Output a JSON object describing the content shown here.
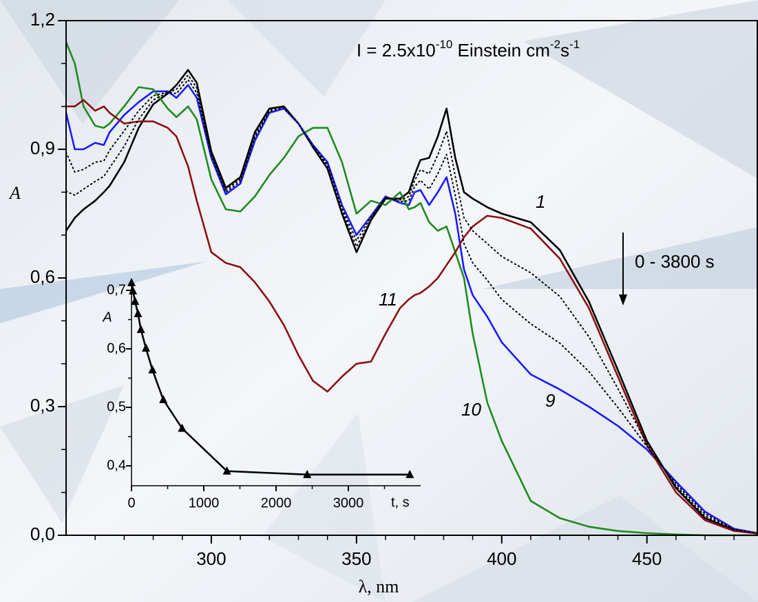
{
  "chart_data": [
    {
      "type": "line",
      "annotation_parts": [
        "I = 2.5x10",
        "-10",
        " Einstein cm",
        "-2",
        "s",
        "-1"
      ],
      "arrow_label": "0 - 3800 s",
      "xlabel": "λ, nm",
      "ylabel": "A",
      "x": [
        250,
        253,
        256,
        260,
        263,
        265,
        270,
        275,
        280,
        285,
        288,
        292,
        295,
        300,
        305,
        310,
        315,
        320,
        325,
        330,
        335,
        340,
        345,
        350,
        355,
        360,
        365,
        368,
        370,
        372,
        375,
        378,
        381,
        384,
        387,
        390,
        395,
        400,
        410,
        420,
        430,
        440,
        450,
        460,
        470,
        480,
        488
      ],
      "xlim": [
        250,
        488
      ],
      "xticks": [
        300,
        350,
        400,
        450
      ],
      "xminorticks": [
        260,
        270,
        280,
        290,
        310,
        320,
        330,
        340,
        360,
        370,
        380,
        390,
        410,
        420,
        430,
        440,
        460,
        470,
        480
      ],
      "ylim": [
        0,
        1.2
      ],
      "yticks": [
        {
          "value": 0,
          "label": "0,0"
        },
        {
          "value": 0.3,
          "label": "0,3"
        },
        {
          "value": 0.6,
          "label": "0,6"
        },
        {
          "value": 0.9,
          "label": "0,9"
        },
        {
          "value": 1.2,
          "label": "1,2"
        }
      ],
      "yminorticks": [
        0.1,
        0.2,
        0.4,
        0.5,
        0.7,
        0.8,
        1.0,
        1.1
      ],
      "series": [
        {
          "name": "1",
          "color": "#000000",
          "values": [
            0.71,
            0.74,
            0.76,
            0.78,
            0.8,
            0.815,
            0.87,
            0.95,
            1.005,
            1.03,
            1.05,
            1.085,
            1.055,
            0.895,
            0.81,
            0.835,
            0.94,
            0.995,
            1.0,
            0.96,
            0.905,
            0.855,
            0.75,
            0.66,
            0.735,
            0.785,
            0.785,
            0.8,
            0.84,
            0.875,
            0.88,
            0.93,
            0.995,
            0.88,
            0.8,
            0.785,
            0.765,
            0.75,
            0.73,
            0.665,
            0.545,
            0.385,
            0.22,
            0.11,
            0.04,
            0.012,
            0.005
          ]
        },
        {
          "name": "9",
          "color": "#1a1aff",
          "values": [
            0.985,
            0.9,
            0.9,
            0.915,
            0.91,
            0.94,
            0.98,
            1.01,
            1.035,
            1.035,
            1.02,
            1.05,
            1.02,
            0.88,
            0.795,
            0.82,
            0.92,
            0.985,
            0.995,
            0.96,
            0.91,
            0.87,
            0.77,
            0.7,
            0.745,
            0.79,
            0.775,
            0.77,
            0.8,
            0.805,
            0.77,
            0.8,
            0.835,
            0.75,
            0.62,
            0.56,
            0.51,
            0.45,
            0.375,
            0.34,
            0.3,
            0.255,
            0.2,
            0.125,
            0.055,
            0.015,
            0.005
          ]
        },
        {
          "name": "10",
          "color": "#1e8a1e",
          "values": [
            1.15,
            1.1,
            1.0,
            0.955,
            0.95,
            0.96,
            1.0,
            1.045,
            1.04,
            0.995,
            0.975,
            1.0,
            0.97,
            0.83,
            0.76,
            0.755,
            0.79,
            0.84,
            0.88,
            0.93,
            0.95,
            0.95,
            0.87,
            0.75,
            0.78,
            0.77,
            0.8,
            0.76,
            0.765,
            0.775,
            0.73,
            0.71,
            0.72,
            0.66,
            0.6,
            0.47,
            0.31,
            0.22,
            0.08,
            0.04,
            0.02,
            0.01,
            0.005,
            0.002,
            0,
            0,
            0
          ]
        },
        {
          "name": "11",
          "color": "#8b1010",
          "values": [
            1.0,
            1.0,
            1.015,
            0.99,
            1.0,
            0.985,
            0.96,
            0.965,
            0.965,
            0.95,
            0.93,
            0.86,
            0.78,
            0.66,
            0.635,
            0.625,
            0.59,
            0.545,
            0.49,
            0.42,
            0.36,
            0.335,
            0.37,
            0.4,
            0.405,
            0.47,
            0.53,
            0.55,
            0.56,
            0.565,
            0.58,
            0.6,
            0.63,
            0.66,
            0.695,
            0.72,
            0.745,
            0.74,
            0.715,
            0.645,
            0.53,
            0.37,
            0.21,
            0.1,
            0.035,
            0.01,
            0.004
          ]
        },
        {
          "color": "#000000",
          "style": "dotted",
          "values": [
            0.802,
            0.793,
            0.807,
            0.825,
            0.837,
            0.857,
            0.907,
            0.97,
            1.015,
            1.032,
            1.04,
            1.073,
            1.043,
            0.89,
            0.805,
            0.83,
            0.933,
            0.992,
            0.998,
            0.96,
            0.907,
            0.86,
            0.757,
            0.673,
            0.738,
            0.787,
            0.782,
            0.79,
            0.827,
            0.852,
            0.843,
            0.887,
            0.942,
            0.837,
            0.74,
            0.71,
            0.68,
            0.65,
            0.612,
            0.557,
            0.463,
            0.342,
            0.213,
            0.115,
            0.045,
            0.013,
            0.005
          ]
        },
        {
          "color": "#000000",
          "style": "dotted",
          "values": [
            0.893,
            0.847,
            0.853,
            0.87,
            0.873,
            0.898,
            0.943,
            0.99,
            1.025,
            1.033,
            1.03,
            1.062,
            1.032,
            0.885,
            0.8,
            0.825,
            0.927,
            0.988,
            0.997,
            0.96,
            0.908,
            0.865,
            0.763,
            0.687,
            0.742,
            0.788,
            0.778,
            0.78,
            0.813,
            0.828,
            0.807,
            0.843,
            0.888,
            0.793,
            0.68,
            0.635,
            0.595,
            0.55,
            0.493,
            0.448,
            0.382,
            0.298,
            0.207,
            0.12,
            0.05,
            0.014,
            0.005
          ]
        }
      ]
    },
    {
      "type": "line",
      "marker": "triangle",
      "color": "#000000",
      "xlabel": "t, s",
      "ylabel": "A",
      "x": [
        0,
        20,
        50,
        90,
        130,
        200,
        290,
        440,
        700,
        1320,
        2430,
        3850
      ],
      "values": [
        0.713,
        0.699,
        0.681,
        0.66,
        0.633,
        0.601,
        0.564,
        0.513,
        0.464,
        0.391,
        0.385,
        0.385
      ],
      "xlim": [
        0,
        4000
      ],
      "xticks": [
        0,
        1000,
        2000,
        3000
      ],
      "xminorticks": [
        500,
        1500,
        2500,
        3500
      ],
      "ylim": [
        0.366,
        0.72
      ],
      "yticks": [
        {
          "value": 0.4,
          "label": "0,4"
        },
        {
          "value": 0.5,
          "label": "0,5"
        },
        {
          "value": 0.6,
          "label": "0,6"
        },
        {
          "value": 0.7,
          "label": "0,7"
        }
      ],
      "yminorticks": [
        0.45,
        0.55,
        0.65
      ]
    }
  ]
}
